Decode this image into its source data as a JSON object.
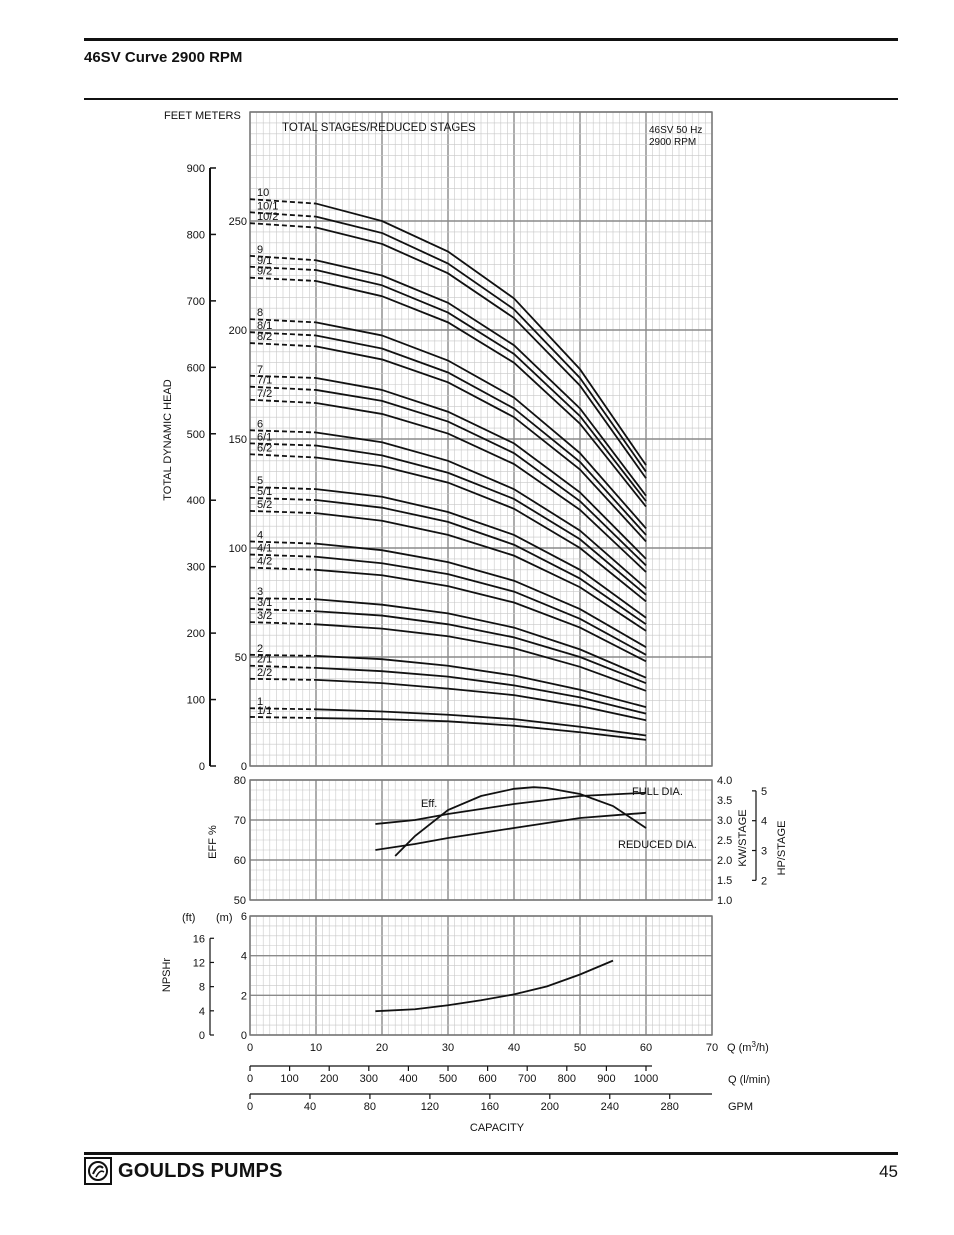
{
  "page": {
    "title": "46SV Curve 2900 RPM",
    "page_number": "45",
    "brand": "GOULDS PUMPS",
    "brand_icon": "goulds-pumps-logo-icon"
  },
  "chart_data": [
    {
      "type": "line",
      "name": "head",
      "units_header": "FEET   METERS",
      "ylabel": "TOTAL DYNAMIC HEAD",
      "header_label": "TOTAL STAGES/REDUCED STAGES",
      "note": [
        "46SV  50 Hz",
        "2900 RPM"
      ],
      "ylim_feet": [
        0,
        900
      ],
      "ylim_m": [
        0,
        275
      ],
      "yticks_feet": [
        0,
        100,
        200,
        300,
        400,
        500,
        600,
        700,
        800,
        900
      ],
      "yticks_m": [
        0,
        50,
        100,
        150,
        200,
        250
      ],
      "xlim": [
        0,
        70
      ],
      "dashed_until_x": 10,
      "series": [
        {
          "name": "1/1",
          "x": [
            0,
            10,
            20,
            30,
            40,
            50,
            60
          ],
          "y": [
            22.5,
            22.0,
            21.5,
            20.5,
            18.5,
            15.5,
            12.0
          ]
        },
        {
          "name": "1",
          "x": [
            0,
            10,
            20,
            30,
            40,
            50,
            60
          ],
          "y": [
            26.5,
            26.0,
            25.0,
            23.5,
            21.5,
            18.0,
            14.0
          ]
        },
        {
          "name": "2/2",
          "x": [
            0,
            10,
            20,
            30,
            40,
            50,
            60
          ],
          "y": [
            40.0,
            39.5,
            38.0,
            35.5,
            32.5,
            27.5,
            21.0
          ]
        },
        {
          "name": "2/1",
          "x": [
            0,
            10,
            20,
            30,
            40,
            50,
            60
          ],
          "y": [
            46.0,
            45.0,
            43.5,
            41.0,
            37.0,
            31.5,
            24.0
          ]
        },
        {
          "name": "2",
          "x": [
            0,
            10,
            20,
            30,
            40,
            50,
            60
          ],
          "y": [
            51.0,
            50.5,
            49.0,
            46.0,
            41.5,
            35.0,
            27.0
          ]
        },
        {
          "name": "3/2",
          "x": [
            0,
            10,
            20,
            30,
            40,
            50,
            60
          ],
          "y": [
            66.0,
            65.0,
            63.0,
            59.5,
            54.0,
            45.5,
            34.5
          ]
        },
        {
          "name": "3/1",
          "x": [
            0,
            10,
            20,
            30,
            40,
            50,
            60
          ],
          "y": [
            72.0,
            71.0,
            69.0,
            65.0,
            59.0,
            50.0,
            38.0
          ]
        },
        {
          "name": "3",
          "x": [
            0,
            10,
            20,
            30,
            40,
            50,
            60
          ],
          "y": [
            77.0,
            76.5,
            74.0,
            70.0,
            63.5,
            53.5,
            40.5
          ]
        },
        {
          "name": "4/2",
          "x": [
            0,
            10,
            20,
            30,
            40,
            50,
            60
          ],
          "y": [
            91.0,
            90.0,
            87.5,
            82.5,
            75.0,
            63.5,
            48.0
          ]
        },
        {
          "name": "4/1",
          "x": [
            0,
            10,
            20,
            30,
            40,
            50,
            60
          ],
          "y": [
            97.0,
            96.0,
            93.0,
            88.0,
            80.0,
            67.5,
            51.0
          ]
        },
        {
          "name": "4",
          "x": [
            0,
            10,
            20,
            30,
            40,
            50,
            60
          ],
          "y": [
            103.0,
            102.0,
            99.0,
            93.5,
            85.0,
            72.0,
            54.5
          ]
        },
        {
          "name": "5/2",
          "x": [
            0,
            10,
            20,
            30,
            40,
            50,
            60
          ],
          "y": [
            117.0,
            116.0,
            112.5,
            106.0,
            96.5,
            82.0,
            62.0
          ]
        },
        {
          "name": "5/1",
          "x": [
            0,
            10,
            20,
            30,
            40,
            50,
            60
          ],
          "y": [
            123.0,
            122.0,
            118.5,
            112.0,
            101.5,
            86.0,
            65.0
          ]
        },
        {
          "name": "5",
          "x": [
            0,
            10,
            20,
            30,
            40,
            50,
            60
          ],
          "y": [
            128.0,
            127.0,
            123.5,
            116.5,
            106.0,
            90.0,
            68.0
          ]
        },
        {
          "name": "6/2",
          "x": [
            0,
            10,
            20,
            30,
            40,
            50,
            60
          ],
          "y": [
            143.0,
            141.5,
            137.5,
            130.0,
            118.0,
            100.0,
            75.5
          ]
        },
        {
          "name": "6/1",
          "x": [
            0,
            10,
            20,
            30,
            40,
            50,
            60
          ],
          "y": [
            148.0,
            147.0,
            142.5,
            134.5,
            122.5,
            104.0,
            78.5
          ]
        },
        {
          "name": "6",
          "x": [
            0,
            10,
            20,
            30,
            40,
            50,
            60
          ],
          "y": [
            154.0,
            153.0,
            148.5,
            140.0,
            127.0,
            108.0,
            81.5
          ]
        },
        {
          "name": "7/2",
          "x": [
            0,
            10,
            20,
            30,
            40,
            50,
            60
          ],
          "y": [
            168.0,
            166.5,
            161.5,
            152.5,
            138.5,
            117.5,
            89.0
          ]
        },
        {
          "name": "7/1",
          "x": [
            0,
            10,
            20,
            30,
            40,
            50,
            60
          ],
          "y": [
            174.0,
            172.5,
            167.5,
            158.0,
            143.5,
            121.5,
            92.0
          ]
        },
        {
          "name": "7",
          "x": [
            0,
            10,
            20,
            30,
            40,
            50,
            60
          ],
          "y": [
            179.0,
            178.0,
            172.5,
            162.5,
            148.0,
            125.5,
            95.0
          ]
        },
        {
          "name": "8/2",
          "x": [
            0,
            10,
            20,
            30,
            40,
            50,
            60
          ],
          "y": [
            194.0,
            192.5,
            186.5,
            176.0,
            160.0,
            136.0,
            103.0
          ]
        },
        {
          "name": "8/1",
          "x": [
            0,
            10,
            20,
            30,
            40,
            50,
            60
          ],
          "y": [
            199.0,
            197.5,
            191.5,
            180.5,
            164.0,
            139.5,
            106.0
          ]
        },
        {
          "name": "8",
          "x": [
            0,
            10,
            20,
            30,
            40,
            50,
            60
          ],
          "y": [
            205.0,
            203.5,
            197.5,
            186.0,
            169.0,
            143.5,
            109.0
          ]
        },
        {
          "name": "9/2",
          "x": [
            0,
            10,
            20,
            30,
            40,
            50,
            60
          ],
          "y": [
            224.0,
            222.5,
            215.5,
            203.5,
            185.0,
            157.0,
            119.0
          ]
        },
        {
          "name": "9/1",
          "x": [
            0,
            10,
            20,
            30,
            40,
            50,
            60
          ],
          "y": [
            229.0,
            227.5,
            220.5,
            208.0,
            189.0,
            160.5,
            121.5
          ]
        },
        {
          "name": "9",
          "x": [
            0,
            10,
            20,
            30,
            40,
            50,
            60
          ],
          "y": [
            234.0,
            232.0,
            225.0,
            212.5,
            193.0,
            164.0,
            124.0
          ]
        },
        {
          "name": "10/2",
          "x": [
            0,
            10,
            20,
            30,
            40,
            50,
            60
          ],
          "y": [
            249.0,
            247.0,
            239.5,
            226.0,
            205.5,
            174.5,
            132.0
          ]
        },
        {
          "name": "10/1",
          "x": [
            0,
            10,
            20,
            30,
            40,
            50,
            60
          ],
          "y": [
            254.0,
            252.0,
            244.5,
            230.5,
            209.5,
            178.0,
            135.0
          ]
        },
        {
          "name": "10",
          "x": [
            0,
            10,
            20,
            30,
            40,
            50,
            60
          ],
          "y": [
            260.0,
            258.0,
            250.0,
            236.0,
            214.5,
            182.0,
            138.0
          ]
        }
      ]
    },
    {
      "type": "line",
      "name": "efficiency-power",
      "ylabel_left": "EFF %",
      "ylabel_right_1": "KW/STAGE",
      "ylabel_right_2": "HP/STAGE",
      "ylim": [
        50,
        80
      ],
      "yticks": [
        50,
        60,
        70,
        80
      ],
      "yticks_kw": [
        "1.0",
        "1.5",
        "2.0",
        "2.5",
        "3.0",
        "3.5",
        "4.0"
      ],
      "yticks_hp": [
        "2",
        "3",
        "4",
        "5"
      ],
      "series": [
        {
          "name": "Eff.",
          "x": [
            22,
            25,
            30,
            35,
            40,
            43,
            45,
            50,
            55,
            60
          ],
          "y": [
            61.0,
            66.0,
            72.5,
            76.0,
            77.8,
            78.2,
            78.0,
            76.5,
            73.5,
            68.0
          ]
        },
        {
          "name": "FULL DIA.",
          "x": [
            19,
            25,
            30,
            40,
            50,
            60
          ],
          "y": [
            2.9,
            3.0,
            3.15,
            3.4,
            3.6,
            3.68
          ]
        },
        {
          "name": "REDUCED DIA.",
          "x": [
            19,
            25,
            30,
            40,
            50,
            60
          ],
          "y": [
            2.25,
            2.4,
            2.55,
            2.8,
            3.05,
            3.18
          ]
        }
      ]
    },
    {
      "type": "line",
      "name": "npshr",
      "ylabel": "NPSHr",
      "unit_ft": "(ft)",
      "unit_m": "(m)",
      "yticks_ft": [
        0,
        4,
        8,
        12,
        16
      ],
      "yticks_m": [
        0,
        2,
        4,
        6
      ],
      "ylim_m": [
        0,
        6
      ],
      "series": [
        {
          "name": "NPSHr",
          "x": [
            19,
            25,
            30,
            35,
            40,
            45,
            50,
            55
          ],
          "y": [
            1.2,
            1.3,
            1.5,
            1.75,
            2.05,
            2.45,
            3.05,
            3.75
          ]
        }
      ]
    }
  ],
  "axes": {
    "q_m3h": {
      "label": "Q (m3/h)",
      "label_main": "Q (m",
      "label_sup": "3",
      "label_end": "/h)",
      "ticks": [
        0,
        10,
        20,
        30,
        40,
        50,
        60,
        70
      ]
    },
    "q_lmin": {
      "label": "Q (l/min)",
      "ticks": [
        0,
        100,
        200,
        300,
        400,
        500,
        600,
        700,
        800,
        900,
        1000
      ]
    },
    "gpm": {
      "label": "GPM",
      "ticks": [
        0,
        40,
        80,
        120,
        160,
        200,
        240,
        280
      ]
    },
    "capacity_label": "CAPACITY"
  }
}
